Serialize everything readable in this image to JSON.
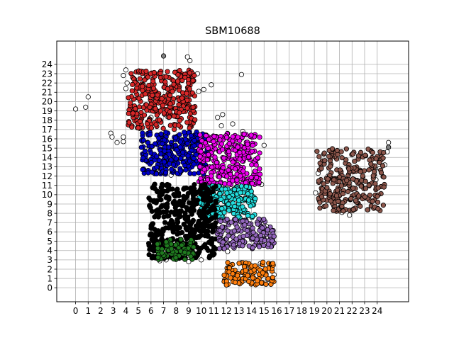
{
  "chart_data": {
    "type": "scatter",
    "title": "SBM10688",
    "xlabel": "",
    "ylabel": "",
    "xlim": [
      -1.5,
      26.5
    ],
    "ylim": [
      -1.5,
      26.5
    ],
    "grid": true,
    "legend": "none",
    "xticks": [
      0,
      1,
      2,
      3,
      4,
      5,
      6,
      7,
      8,
      9,
      10,
      11,
      12,
      13,
      14,
      15,
      16,
      17,
      18,
      19,
      20,
      21,
      22,
      23,
      24
    ],
    "yticks": [
      0,
      1,
      2,
      3,
      4,
      5,
      6,
      7,
      8,
      9,
      10,
      11,
      12,
      13,
      14,
      15,
      16,
      17,
      18,
      19,
      20,
      21,
      22,
      23,
      24
    ],
    "marker": {
      "edge_color": "#000000",
      "shape": "circle"
    },
    "clusters": [
      {
        "color": "#d62728",
        "x_range": [
          4.2,
          9.5
        ],
        "y_range": [
          17.0,
          23.4
        ],
        "count": 320
      },
      {
        "color": "#0000cc",
        "x_range": [
          5.2,
          10.5
        ],
        "y_range": [
          12.2,
          16.8
        ],
        "count": 280
      },
      {
        "color": "#ee00ee",
        "x_range": [
          9.8,
          14.7
        ],
        "y_range": [
          11.0,
          16.6
        ],
        "count": 300
      },
      {
        "color": "#22dddd",
        "x_range": [
          9.8,
          14.3
        ],
        "y_range": [
          7.5,
          11.0
        ],
        "count": 230
      },
      {
        "color": "#000000",
        "x_range": [
          5.8,
          11.2
        ],
        "y_range": [
          3.0,
          11.2
        ],
        "count": 420
      },
      {
        "color": "#1f7a1f",
        "x_range": [
          6.5,
          9.5
        ],
        "y_range": [
          3.0,
          5.2
        ],
        "count": 80
      },
      {
        "color": "#9467bd",
        "x_range": [
          11.2,
          15.8
        ],
        "y_range": [
          4.2,
          7.4
        ],
        "count": 160
      },
      {
        "color": "#ff7f0e",
        "x_range": [
          11.8,
          15.8
        ],
        "y_range": [
          0.3,
          2.8
        ],
        "count": 110
      },
      {
        "color": "#8c564b",
        "x_range": [
          19.2,
          24.6
        ],
        "y_range": [
          8.2,
          15.0
        ],
        "count": 280
      }
    ],
    "outliers": [
      {
        "color": "#ffffff",
        "points": [
          [
            0,
            19.2
          ],
          [
            0.8,
            19.4
          ],
          [
            1.0,
            20.5
          ],
          [
            2.8,
            16.6
          ],
          [
            2.9,
            16.2
          ],
          [
            3.3,
            15.6
          ],
          [
            3.8,
            16.2
          ],
          [
            3.8,
            15.7
          ],
          [
            4.0,
            23.4
          ],
          [
            3.8,
            22.8
          ],
          [
            4.1,
            22.0
          ],
          [
            4.0,
            21.4
          ],
          [
            7.3,
            18.4
          ],
          [
            6.0,
            18.3
          ],
          [
            5.5,
            15.0
          ],
          [
            8.9,
            24.8
          ],
          [
            9.1,
            24.4
          ],
          [
            9.7,
            23.0
          ],
          [
            9.8,
            21.1
          ],
          [
            10.2,
            21.3
          ],
          [
            10.8,
            21.8
          ],
          [
            11.3,
            18.3
          ],
          [
            11.7,
            18.6
          ],
          [
            13.2,
            22.9
          ],
          [
            12.5,
            17.6
          ],
          [
            11.6,
            17.4
          ],
          [
            13.3,
            16.8
          ],
          [
            15.0,
            15.3
          ],
          [
            14.5,
            13.9
          ],
          [
            14.8,
            11.1
          ],
          [
            13.5,
            11.3
          ],
          [
            9.4,
            10.1
          ],
          [
            9.1,
            9.3
          ],
          [
            8.6,
            10.6
          ],
          [
            7.6,
            12.1
          ],
          [
            6.5,
            12.8
          ],
          [
            10.7,
            9.3
          ],
          [
            11.1,
            9.0
          ],
          [
            10.1,
            8.4
          ],
          [
            15.6,
            5.4
          ],
          [
            15.2,
            6.6
          ],
          [
            12.1,
            3.9
          ],
          [
            10.2,
            4.4
          ],
          [
            10.0,
            3.0
          ],
          [
            13.2,
            2.7
          ],
          [
            14.7,
            2.6
          ],
          [
            15.8,
            1.4
          ],
          [
            13.4,
            0.8
          ],
          [
            15.3,
            0.9
          ],
          [
            19.3,
            12.3
          ],
          [
            20.1,
            12.0
          ],
          [
            19.1,
            10.2
          ],
          [
            20.8,
            9.8
          ],
          [
            21.2,
            8.1
          ],
          [
            21.8,
            7.8
          ],
          [
            24.2,
            12.8
          ],
          [
            24.6,
            13.2
          ],
          [
            24.3,
            14.4
          ],
          [
            24.8,
            14.6
          ],
          [
            24.9,
            15.6
          ],
          [
            23.9,
            11.6
          ],
          [
            9.0,
            2.8
          ],
          [
            6.7,
            2.9
          ],
          [
            7.2,
            3.0
          ],
          [
            6.4,
            3.2
          ]
        ]
      },
      {
        "color": "#808080",
        "points": [
          [
            7.0,
            24.9
          ],
          [
            24.9,
            15.1
          ]
        ]
      }
    ]
  }
}
